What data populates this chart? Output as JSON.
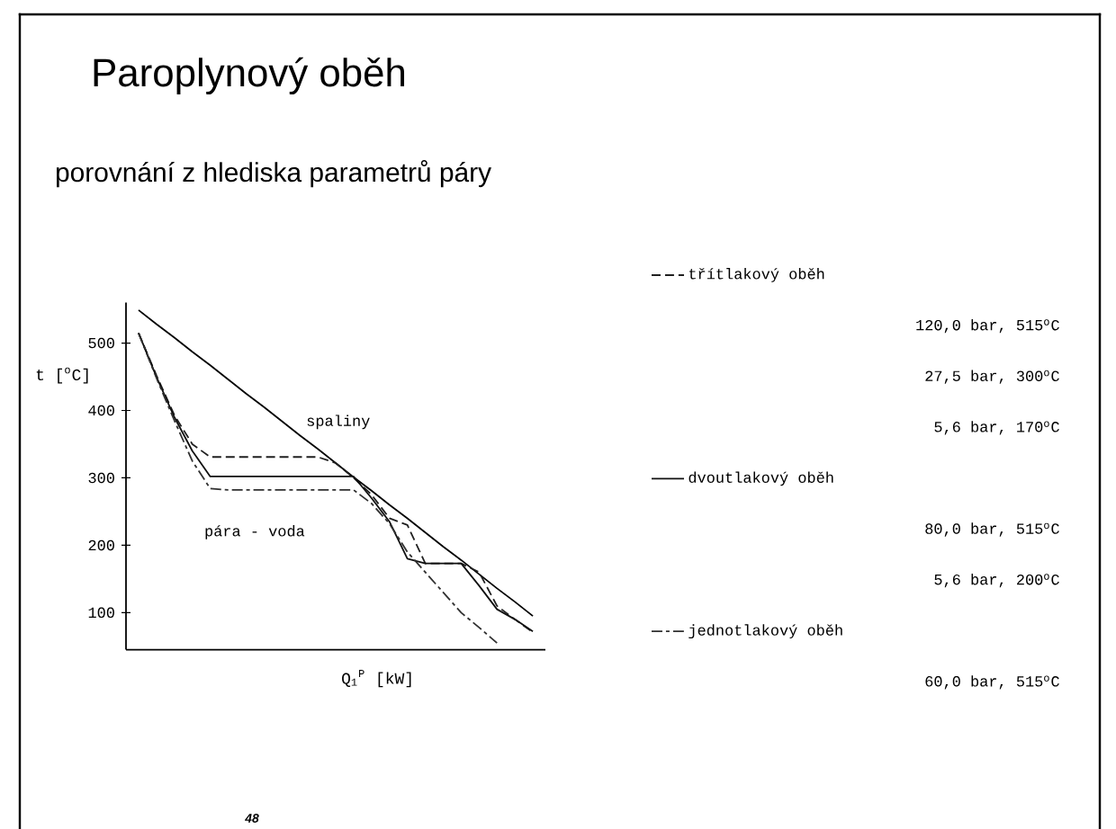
{
  "chart_data": {
    "type": "line",
    "title": "Paroplynový oběh",
    "subtitle": "porovnání z hlediska parametrů páry",
    "xlabel": "Q$_{1}$$^{P}$ [kW]",
    "ylabel": "t [$^{o}$C]",
    "categories": [
      null,
      null,
      null,
      null,
      null,
      null,
      null,
      null,
      null,
      null,
      null,
      null,
      null,
      null,
      null,
      null,
      null,
      null,
      null,
      null,
      null,
      null,
      null
    ],
    "series": [
      {
        "name": "spaliny",
        "color": "#000000",
        "line_style": "solid",
        "values": [
          549,
          528,
          508,
          487,
          467,
          446,
          425,
          405,
          384,
          363,
          343,
          322,
          301,
          281,
          260,
          240,
          219,
          198,
          178,
          157,
          136,
          116,
          95
        ]
      },
      {
        "name": "třítlakový oběh",
        "color": "#202020",
        "line_style": "dashed",
        "values": [
          515,
          452,
          393,
          350,
          331,
          331,
          331,
          331,
          331,
          331,
          331,
          322,
          300,
          275,
          240,
          230,
          173,
          173,
          173,
          160,
          110,
          90,
          71
        ]
      },
      {
        "name": "dvoutlakový oběh",
        "color": "#101010",
        "line_style": "solid",
        "values": [
          515,
          450,
          390,
          340,
          302,
          302,
          302,
          302,
          302,
          302,
          302,
          302,
          302,
          270,
          235,
          180,
          173,
          173,
          173,
          140,
          105,
          90,
          72
        ]
      },
      {
        "name": "jednotlakový oběh",
        "color": "#303030",
        "line_style": "dashdot",
        "values": [
          515,
          448,
          385,
          325,
          284,
          282,
          282,
          282,
          282,
          282,
          282,
          282,
          282,
          262,
          232,
          190,
          160,
          130,
          100,
          78,
          55,
          null,
          null
        ]
      }
    ],
    "ylim": [
      45,
      560
    ],
    "yticks": [
      100,
      200,
      300,
      400,
      500
    ],
    "tick_labels": "y",
    "grid": false,
    "marker": "none",
    "legend": "right",
    "annotations": [
      "pára - voda",
      "120,0 bar, 515$^{o}$C",
      "27,5 bar, 300$^{o}$C",
      "5,6 bar, 170$^{o}$C",
      "80,0 bar, 515$^{o}$C",
      "5,6 bar, 200$^{o}$C",
      "60,0 bar, 515$^{o}$C",
      "48"
    ]
  }
}
